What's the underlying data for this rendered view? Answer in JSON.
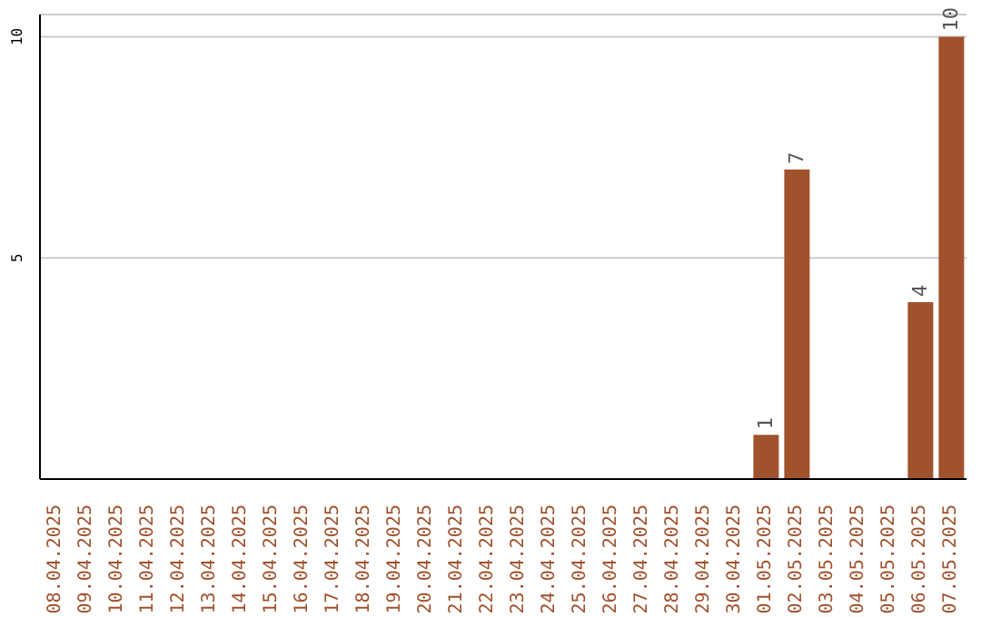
{
  "chart_data": {
    "type": "bar",
    "categories": [
      "08.04.2025",
      "09.04.2025",
      "10.04.2025",
      "11.04.2025",
      "12.04.2025",
      "13.04.2025",
      "14.04.2025",
      "15.04.2025",
      "16.04.2025",
      "17.04.2025",
      "18.04.2025",
      "19.04.2025",
      "20.04.2025",
      "21.04.2025",
      "22.04.2025",
      "23.04.2025",
      "24.04.2025",
      "25.04.2025",
      "26.04.2025",
      "27.04.2025",
      "28.04.2025",
      "29.04.2025",
      "30.04.2025",
      "01.05.2025",
      "02.05.2025",
      "03.05.2025",
      "04.05.2025",
      "05.05.2025",
      "06.05.2025",
      "07.05.2025"
    ],
    "values": [
      0,
      0,
      0,
      0,
      0,
      0,
      0,
      0,
      0,
      0,
      0,
      0,
      0,
      0,
      0,
      0,
      0,
      0,
      0,
      0,
      0,
      0,
      0,
      1,
      7,
      0,
      0,
      0,
      4,
      10
    ],
    "value_labels": [
      null,
      null,
      null,
      null,
      null,
      null,
      null,
      null,
      null,
      null,
      null,
      null,
      null,
      null,
      null,
      null,
      null,
      null,
      null,
      null,
      null,
      null,
      null,
      "1",
      "7",
      null,
      null,
      null,
      "4",
      "10"
    ],
    "color": "#a0522d",
    "ylim": [
      0,
      10.5
    ],
    "yticks": [
      5,
      10
    ],
    "grid": "y"
  }
}
